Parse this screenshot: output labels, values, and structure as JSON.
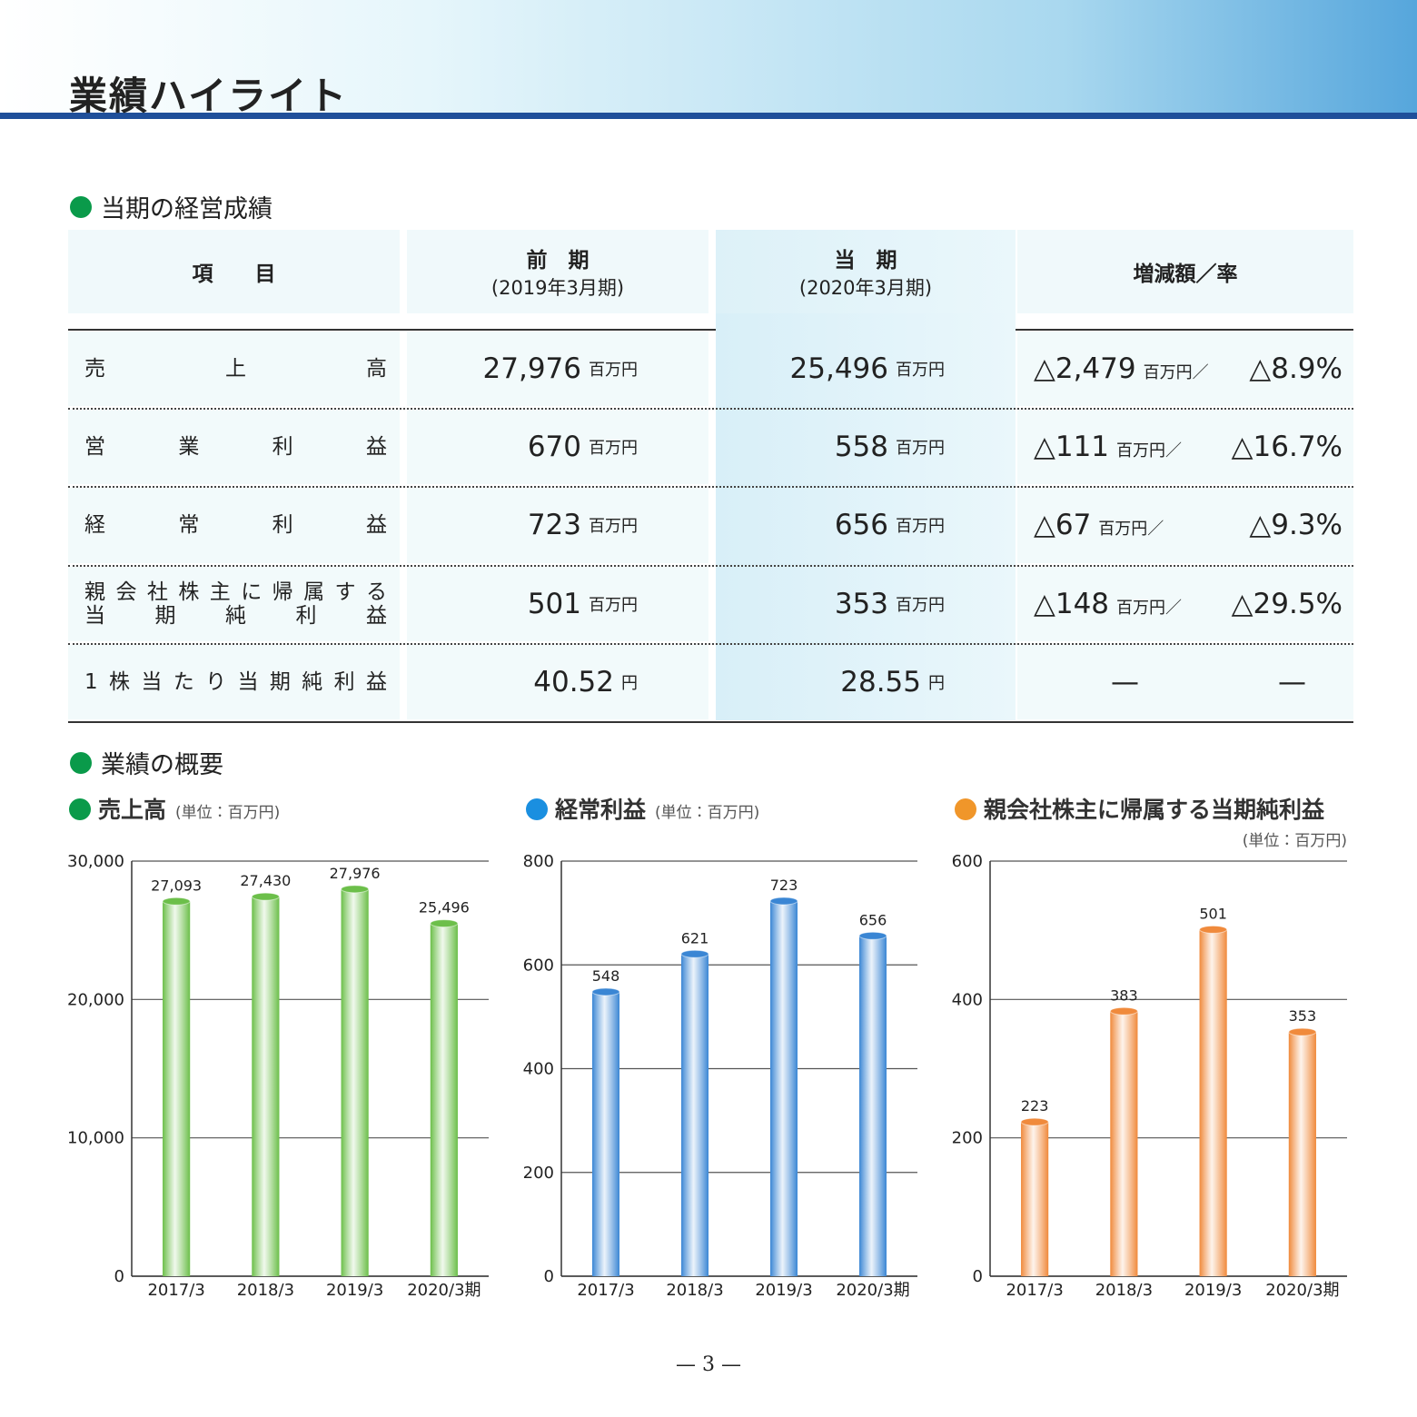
{
  "header": {
    "title": "業績ハイライト"
  },
  "section1": {
    "heading": "当期の経営成績"
  },
  "table": {
    "columns": [
      {
        "lines": [
          "項　　目"
        ]
      },
      {
        "lines": [
          "前　期",
          "(2019年3月期)"
        ]
      },
      {
        "lines": [
          "当　期",
          "(2020年3月期)"
        ]
      },
      {
        "lines": [
          "増減額／率"
        ]
      }
    ],
    "rows": [
      {
        "item": [
          "売上高"
        ],
        "prev": {
          "value": "27,976",
          "unit": "百万円"
        },
        "curr": {
          "value": "25,496",
          "unit": "百万円"
        },
        "change": {
          "amount": "△2,479",
          "unit": "百万円／",
          "rate": "△8.9%"
        }
      },
      {
        "item": [
          "営業利益"
        ],
        "prev": {
          "value": "670",
          "unit": "百万円"
        },
        "curr": {
          "value": "558",
          "unit": "百万円"
        },
        "change": {
          "amount": "△111",
          "unit": "百万円／",
          "rate": "△16.7%"
        }
      },
      {
        "item": [
          "経常利益"
        ],
        "prev": {
          "value": "723",
          "unit": "百万円"
        },
        "curr": {
          "value": "656",
          "unit": "百万円"
        },
        "change": {
          "amount": "△67",
          "unit": "百万円／",
          "rate": "△9.3%"
        }
      },
      {
        "item": [
          "親会社株主に帰属する",
          "当期純利益"
        ],
        "prev": {
          "value": "501",
          "unit": "百万円"
        },
        "curr": {
          "value": "353",
          "unit": "百万円"
        },
        "change": {
          "amount": "△148",
          "unit": "百万円／",
          "rate": "△29.5%"
        }
      },
      {
        "item": [
          "1株当たり当期純利益"
        ],
        "prev": {
          "value": "40.52",
          "unit": "円"
        },
        "curr": {
          "value": "28.55",
          "unit": "円"
        },
        "change": {
          "amount": "—",
          "rate": "—"
        }
      }
    ]
  },
  "section2": {
    "heading": "業績の概要"
  },
  "chart_data": [
    {
      "type": "bar",
      "title": "売上高",
      "unit": "(単位：百万円)",
      "color": "#6cbf4a",
      "dot": "#0a9a4a",
      "categories": [
        "2017/3",
        "2018/3",
        "2019/3",
        "2020/3期"
      ],
      "values": [
        27093,
        27430,
        27976,
        25496
      ],
      "value_labels": [
        "27,093",
        "27,430",
        "27,976",
        "25,496"
      ],
      "ylim": [
        0,
        30000
      ],
      "yticks": [
        0,
        {
          "value": 10000,
          "label": "10,000"
        },
        {
          "value": 20000,
          "label": "20,000"
        },
        {
          "value": 30000,
          "label": "30,000"
        }
      ],
      "grid": true
    },
    {
      "type": "bar",
      "title": "経常利益",
      "unit": "(単位：百万円)",
      "color": "#3a86d4",
      "dot": "#1a8fe0",
      "categories": [
        "2017/3",
        "2018/3",
        "2019/3",
        "2020/3期"
      ],
      "values": [
        548,
        621,
        723,
        656
      ],
      "ylim": [
        0,
        800
      ],
      "yticks": [
        0,
        200,
        400,
        600,
        800
      ],
      "grid": true
    },
    {
      "type": "bar",
      "title": "親会社株主に帰属する当期純利益",
      "unit": "(単位：百万円)",
      "color": "#f08a3c",
      "dot": "#f0962a",
      "categories": [
        "2017/3",
        "2018/3",
        "2019/3",
        "2020/3期"
      ],
      "values": [
        223,
        383,
        501,
        353
      ],
      "ylim": [
        0,
        600
      ],
      "yticks": [
        0,
        200,
        400,
        600
      ],
      "grid": true
    }
  ],
  "page_number": "— 3 —"
}
